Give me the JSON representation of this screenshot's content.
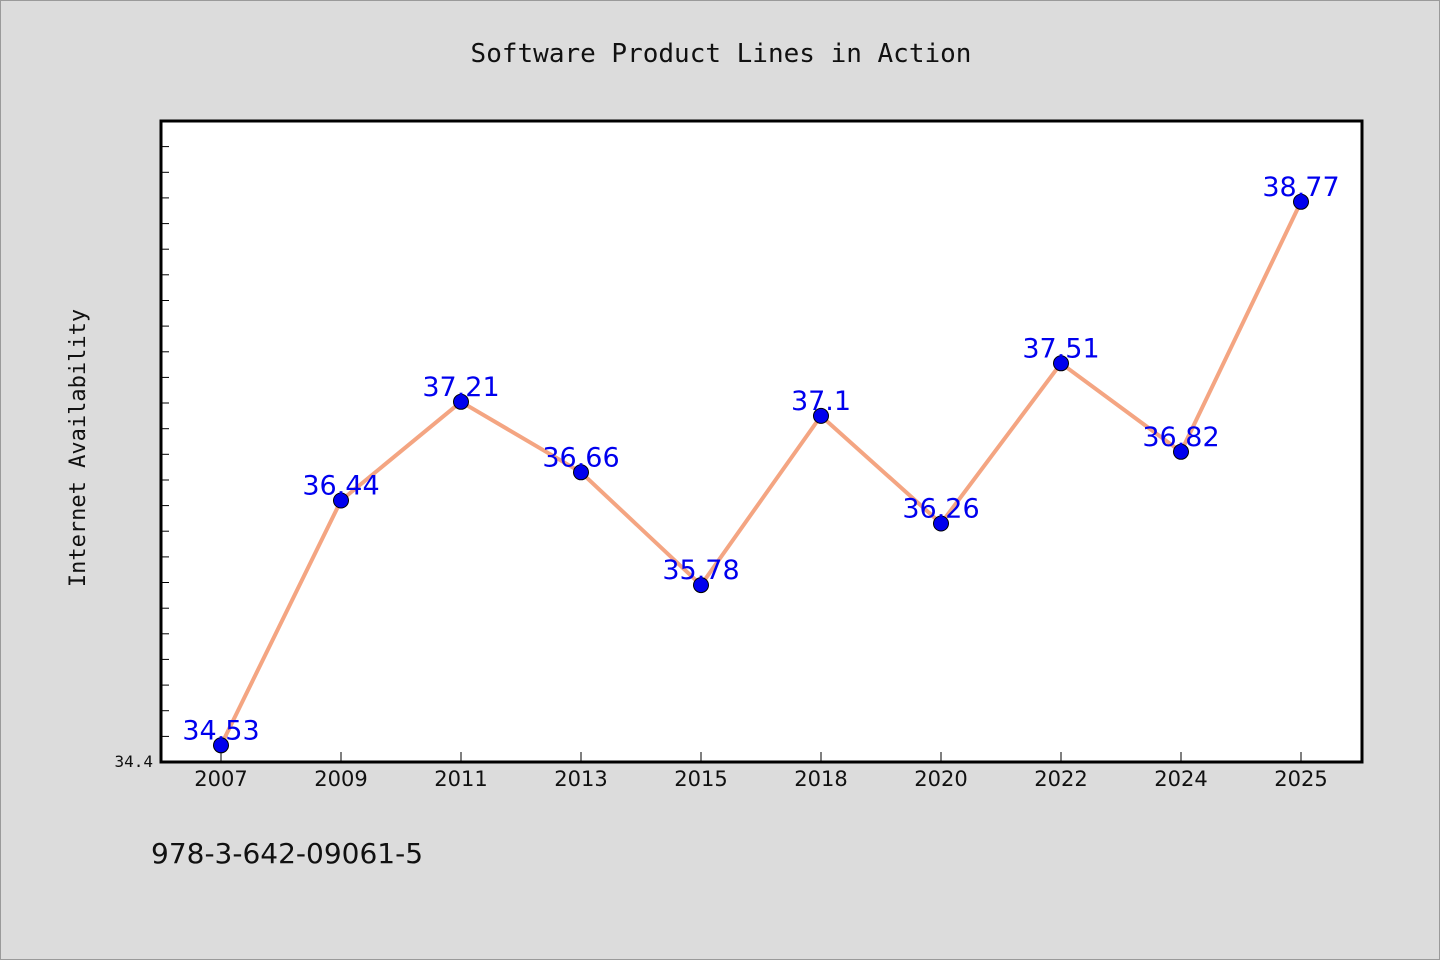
{
  "chart_data": {
    "type": "line",
    "title": "Software Product Lines in Action",
    "xlabel": "",
    "ylabel": "Internet Availability",
    "categories": [
      "2007",
      "2009",
      "2011",
      "2013",
      "2015",
      "2018",
      "2020",
      "2022",
      "2024",
      "2025"
    ],
    "series": [
      {
        "values": [
          34.53,
          36.44,
          37.21,
          36.66,
          35.78,
          37.1,
          36.26,
          37.51,
          36.82,
          38.77
        ],
        "labels": [
          "34.53",
          "36.44",
          "37.21",
          "36.66",
          "35.78",
          "37.1",
          "36.26",
          "37.51",
          "36.82",
          "38.77"
        ]
      }
    ],
    "ytick_labels": [
      "34.4"
    ],
    "ylim": [
      34.4,
      39.4
    ],
    "grid": false,
    "line_color": "#f4a582",
    "marker_color": "#0000ee",
    "label_color": "#0000ee"
  },
  "footer_text": "978-3-642-09061-5"
}
